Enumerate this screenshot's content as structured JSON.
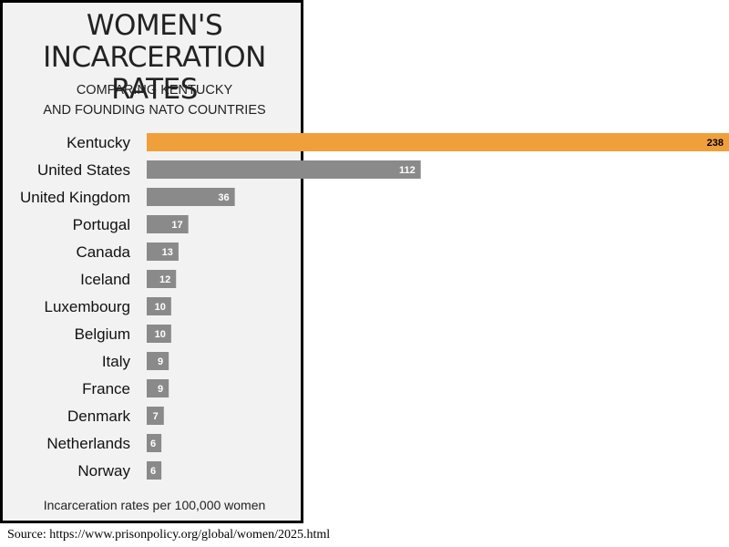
{
  "chart_data": {
    "type": "bar",
    "orientation": "horizontal",
    "title": "WOMEN'S\nINCARCERATION RATES",
    "subtitle": "COMPARING KENTUCKY\nAND FOUNDING NATO COUNTRIES",
    "categories": [
      "Kentucky",
      "United States",
      "United Kingdom",
      "Portugal",
      "Canada",
      "Iceland",
      "Luxembourg",
      "Belgium",
      "Italy",
      "France",
      "Denmark",
      "Netherlands",
      "Norway"
    ],
    "values": [
      238,
      112,
      36,
      17,
      13,
      12,
      10,
      10,
      9,
      9,
      7,
      6,
      6
    ],
    "xlim": [
      0,
      238
    ],
    "highlight_category": "Kentucky",
    "colors": {
      "highlight": "#f0a03a",
      "default": "#8a8a8a",
      "highlight_label": "#000000",
      "default_label": "#ffffff"
    },
    "note": "Incarceration rates per 100,000 women",
    "grid": false,
    "legend": "none"
  },
  "source": "Source: https://www.prisonpolicy.org/global/women/2025.html"
}
